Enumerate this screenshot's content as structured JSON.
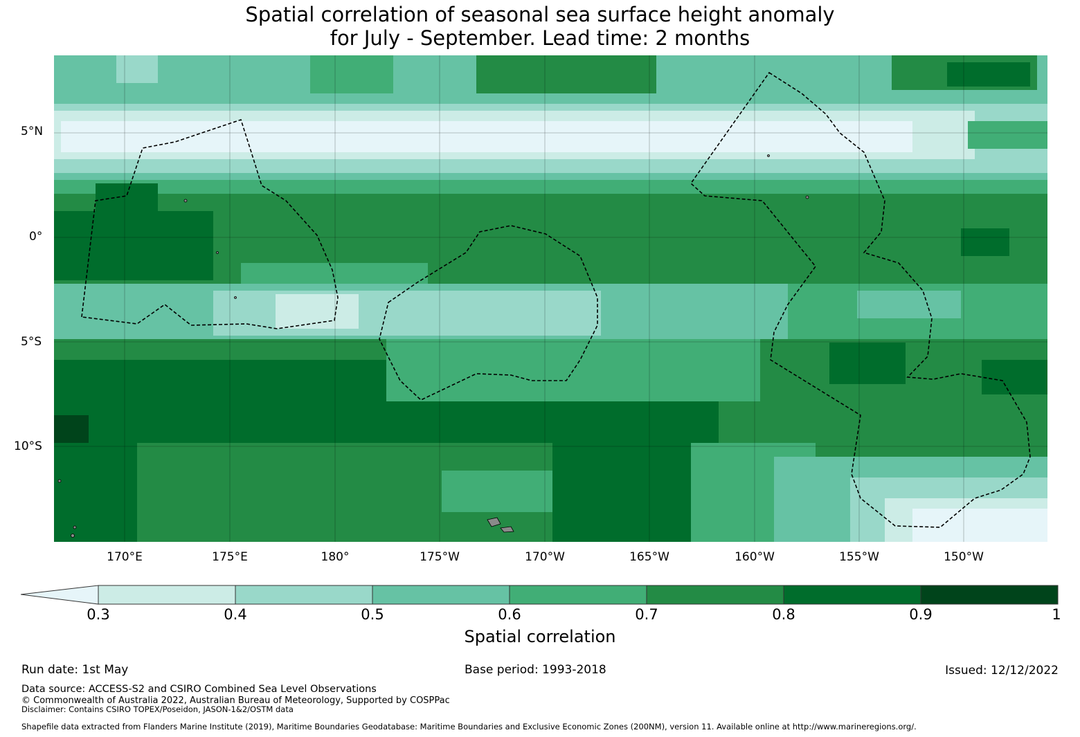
{
  "title_line1": "Spatial correlation of seasonal sea surface height anomaly",
  "title_line2": "for July - September. Lead time: 2 months",
  "map": {
    "lat_labels": [
      "5°N",
      "0°",
      "5°S",
      "10°S"
    ],
    "lon_labels": [
      "170°E",
      "175°E",
      "180°",
      "175°W",
      "170°W",
      "165°W",
      "160°W",
      "155°W",
      "150°W"
    ]
  },
  "colorbar": {
    "ticks": [
      "0.3",
      "0.4",
      "0.5",
      "0.6",
      "0.7",
      "0.8",
      "0.9",
      "1"
    ],
    "label": "Spatial correlation",
    "colors": [
      "#e6f5f9",
      "#ccece6",
      "#99d8c9",
      "#66c2a4",
      "#41ae76",
      "#238b45",
      "#006d2c",
      "#00441b"
    ]
  },
  "footer": {
    "run_date": "Run date: 1st May",
    "base_period": "Base period: 1993-2018",
    "issued": "Issued: 12/12/2022",
    "data_source": "Data source: ACCESS-S2 and CSIRO Combined Sea Level Observations",
    "copyright": "© Commonwealth of Australia 2022, Australian Bureau of Meteorology, Supported by COSPPac",
    "disclaimer": "Disclaimer: Contains CSIRO TOPEX/Poseidon, JASON-1&2/OSTM data",
    "shapefile": "Shapefile data extracted from Flanders Marine Institute (2019), Maritime Boundaries Geodatabase: Maritime Boundaries and Exclusive Economic Zones (200NM), version 11. Available online at http://www.marineregions.org/."
  }
}
